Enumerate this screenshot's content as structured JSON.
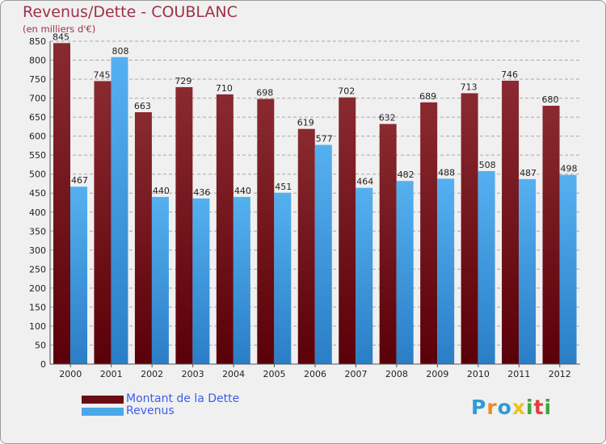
{
  "header": {
    "title": "Revenus/Dette - COUBLANC",
    "subtitle": "(en milliers d'€)"
  },
  "chart_data": {
    "type": "bar",
    "title": "Revenus/Dette - COUBLANC",
    "ylabel": "(en milliers d'€)",
    "xlabel": "",
    "categories": [
      "2000",
      "2001",
      "2002",
      "2003",
      "2004",
      "2005",
      "2006",
      "2007",
      "2008",
      "2009",
      "2010",
      "2011",
      "2012"
    ],
    "series": [
      {
        "name": "Montant de la Dette",
        "color": "#7a1c22",
        "values": [
          845,
          745,
          663,
          729,
          710,
          698,
          619,
          702,
          632,
          689,
          713,
          746,
          680
        ]
      },
      {
        "name": "Revenus",
        "color": "#4aa8ea",
        "values": [
          467,
          808,
          440,
          436,
          440,
          451,
          577,
          464,
          482,
          488,
          508,
          487,
          498
        ]
      }
    ],
    "ylim": [
      0,
      850
    ],
    "ytick_step": 50,
    "grid": true,
    "legend": "bottom-left"
  },
  "legend": {
    "items": [
      {
        "label": "Montant de la Dette",
        "color": "#6b0d14"
      },
      {
        "label": "Revenus",
        "color": "#4aa8ea"
      }
    ]
  },
  "logo": {
    "letters": [
      {
        "ch": "P",
        "color": "#2f9ad8"
      },
      {
        "ch": "r",
        "color": "#f08a1a"
      },
      {
        "ch": "o",
        "color": "#2f9ad8"
      },
      {
        "ch": "x",
        "color": "#f0c020"
      },
      {
        "ch": "i",
        "color": "#3aa83a"
      },
      {
        "ch": "t",
        "color": "#e04040"
      },
      {
        "ch": "i",
        "color": "#3aa83a"
      }
    ]
  }
}
